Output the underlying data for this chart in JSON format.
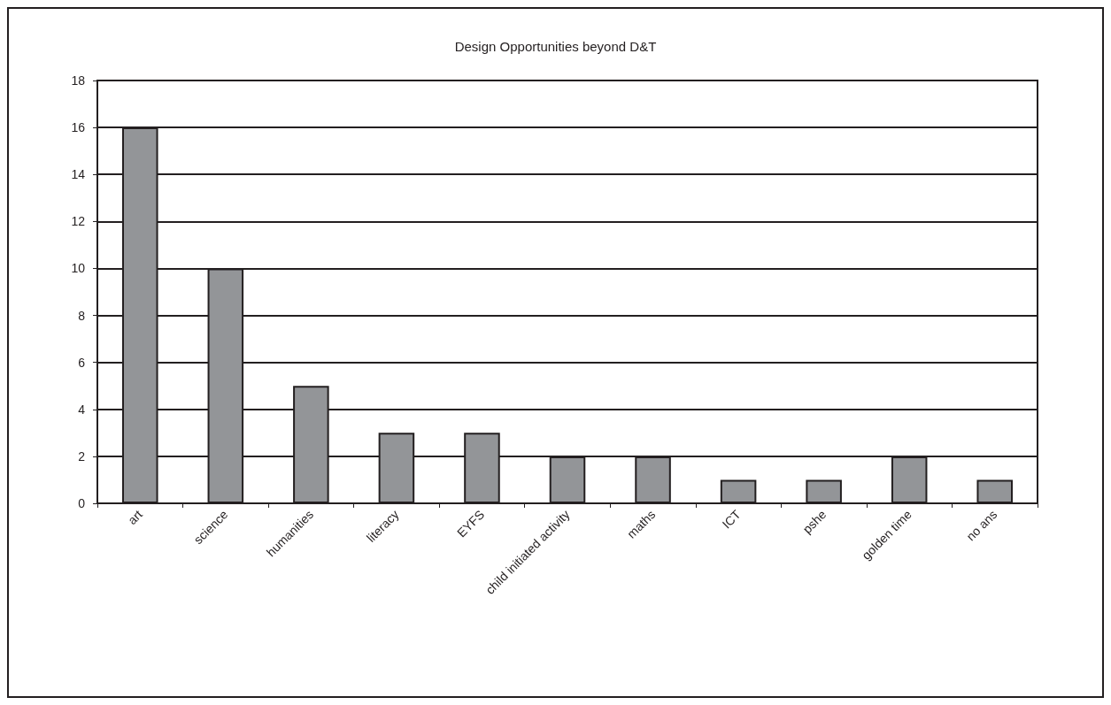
{
  "chart_data": {
    "type": "bar",
    "title": "Design Opportunities beyond D&T",
    "categories": [
      "art",
      "science",
      "humanities",
      "literacy",
      "EYFS",
      "child initiated activity",
      "maths",
      "ICT",
      "pshe",
      "golden time",
      "no ans"
    ],
    "values": [
      16,
      10,
      5,
      3,
      3,
      2,
      2,
      1,
      1,
      2,
      1
    ],
    "color": "#939598",
    "ylim": [
      0,
      18
    ],
    "yticks": [
      0,
      2,
      4,
      6,
      8,
      10,
      12,
      14,
      16,
      18
    ],
    "grid": "y"
  }
}
